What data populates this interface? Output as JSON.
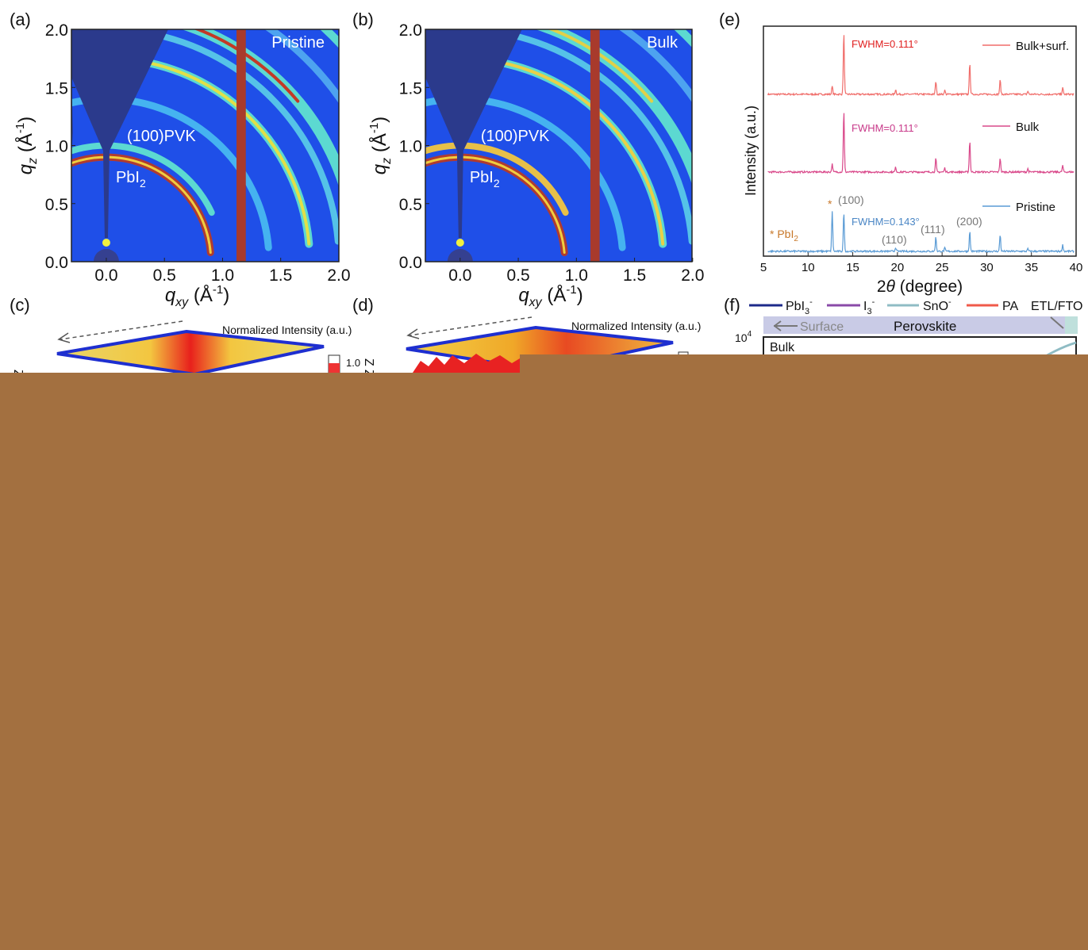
{
  "panel_a": {
    "label": "(a)",
    "tag": "Pristine",
    "pvk": "(100)PVK",
    "pbi": "PbI",
    "pbi_sub": "2",
    "x_ticks": [
      "0.0",
      "0.5",
      "1.0",
      "1.5",
      "2.0"
    ],
    "y_ticks": [
      "0.0",
      "0.5",
      "1.0",
      "1.5",
      "2.0"
    ],
    "x_label": {
      "symbol": "q",
      "sub": "xy",
      "unit": " (Å",
      "sup": "-1",
      "close": ")"
    },
    "y_label": {
      "symbol": "q",
      "sub": "z",
      "unit": " (Å",
      "sup": "-1",
      "close": ")"
    }
  },
  "panel_b": {
    "label": "(b)",
    "tag": "Bulk",
    "pvk": "(100)PVK",
    "pbi": "PbI",
    "pbi_sub": "2",
    "x_ticks": [
      "0.0",
      "0.5",
      "1.0",
      "1.5",
      "2.0"
    ],
    "y_ticks": [
      "0.0",
      "0.5",
      "1.0",
      "1.5",
      "2.0"
    ],
    "x_label": {
      "symbol": "q",
      "sub": "xy",
      "unit": " (Å",
      "sup": "-1",
      "close": ")"
    },
    "y_label": {
      "symbol": "q",
      "sub": "z",
      "unit": " (Å",
      "sup": "-1",
      "close": ")"
    }
  },
  "panel_c": {
    "label": "(c)",
    "title": "Normalized Intensity (a.u.)",
    "tick": "1.0",
    "axis": "Z"
  },
  "panel_d": {
    "label": "(d)",
    "title": "Normalized Intensity (a.u.)",
    "axis": "Z"
  },
  "panel_e": {
    "label": "(e)",
    "y_label": "Intensity (a.u.)",
    "x_label": {
      "pre": "2",
      "theta": "θ",
      "post": " (degree)"
    },
    "x_ticks": [
      "5",
      "10",
      "15",
      "20",
      "25",
      "30",
      "35",
      "40"
    ],
    "legend": [
      "Bulk+surf.",
      "Bulk",
      "Pristine"
    ],
    "fwhm": [
      "FWHM=0.111°",
      "FWHM=0.111°",
      "FWHM=0.143°"
    ],
    "peaks": [
      "(100)",
      "(110)",
      "(111)",
      "(200)"
    ],
    "star": "*",
    "pbi": "* PbI",
    "pbi_sub": "2"
  },
  "panel_f": {
    "label": "(f)",
    "legend": [
      {
        "main": "PbI",
        "sub": "3",
        "sup": "-"
      },
      {
        "main": "I",
        "sub": "3",
        "sup": "-"
      },
      {
        "main": "SnO",
        "sup": "-"
      },
      {
        "main": "PA"
      }
    ],
    "etl": "ETL/FTO",
    "surface": "Surface",
    "perovskite": "Perovskite",
    "y_tick": {
      "base": "10",
      "exp": "4"
    },
    "region": "Bulk"
  }
}
